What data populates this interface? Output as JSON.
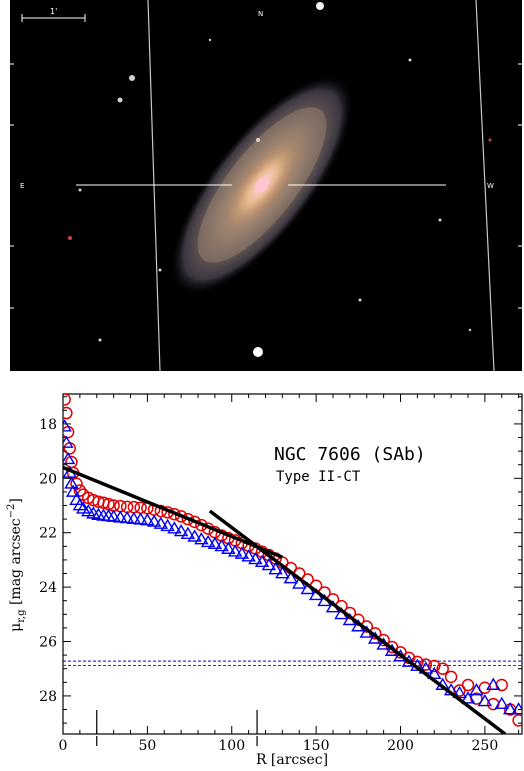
{
  "image_panel": {
    "scale_bar_label": "1'",
    "compass_n": "N",
    "compass_e": "E",
    "compass_w": "W"
  },
  "chart_data": {
    "type": "scatter",
    "title": "NGC 7606 (SAb)",
    "subtitle": "Type II-CT",
    "xlabel": "R [arcsec]",
    "ylabel": "μ_r,g [mag arcsec^-2]",
    "xlim": [
      0,
      272
    ],
    "ylim": [
      29.4,
      16.9
    ],
    "y_inverted": true,
    "x_ticks": [
      0,
      50,
      100,
      150,
      200,
      250
    ],
    "y_ticks": [
      18,
      20,
      22,
      24,
      26,
      28
    ],
    "top_markers": [
      20,
      115
    ],
    "colors": {
      "r": "#e00000",
      "g": "#0000ee",
      "fit": "#000000"
    },
    "series": [
      {
        "marker": "circle",
        "color": "#e00000",
        "x": [
          1,
          2,
          3,
          4,
          5,
          6,
          8,
          10,
          12,
          15,
          18,
          21,
          24,
          27,
          30,
          34,
          38,
          42,
          46,
          50,
          54,
          58,
          62,
          66,
          70,
          74,
          78,
          82,
          86,
          90,
          94,
          98,
          102,
          106,
          110,
          114,
          118,
          122,
          126,
          130,
          135,
          140,
          145,
          150,
          155,
          160,
          165,
          170,
          175,
          180,
          185,
          190,
          195,
          200,
          205,
          210,
          215,
          220,
          225,
          230,
          235,
          240,
          245,
          250,
          255,
          260,
          265,
          270
        ],
        "y": [
          17.1,
          17.6,
          18.3,
          18.9,
          19.4,
          19.8,
          20.2,
          20.45,
          20.6,
          20.72,
          20.8,
          20.86,
          20.9,
          20.95,
          21.0,
          21.02,
          21.05,
          21.06,
          21.08,
          21.1,
          21.15,
          21.2,
          21.25,
          21.32,
          21.4,
          21.5,
          21.6,
          21.72,
          21.85,
          21.98,
          22.1,
          22.2,
          22.28,
          22.38,
          22.48,
          22.58,
          22.7,
          22.82,
          22.95,
          23.1,
          23.3,
          23.5,
          23.72,
          23.95,
          24.2,
          24.45,
          24.7,
          24.95,
          25.2,
          25.45,
          25.7,
          25.95,
          26.2,
          26.4,
          26.6,
          26.75,
          26.85,
          26.9,
          27.0,
          27.3,
          27.8,
          27.6,
          28.1,
          27.7,
          28.3,
          27.6,
          28.5,
          28.9
        ]
      },
      {
        "marker": "triangle",
        "color": "#0000ee",
        "x": [
          1,
          2,
          3,
          4,
          5,
          6,
          8,
          10,
          12,
          15,
          18,
          21,
          24,
          27,
          30,
          34,
          38,
          42,
          46,
          50,
          54,
          58,
          62,
          66,
          70,
          74,
          78,
          82,
          86,
          90,
          94,
          98,
          102,
          106,
          110,
          114,
          118,
          122,
          126,
          130,
          135,
          140,
          145,
          150,
          155,
          160,
          165,
          170,
          175,
          180,
          185,
          190,
          195,
          200,
          205,
          210,
          215,
          220,
          225,
          230,
          235,
          240,
          245,
          250,
          255,
          260,
          265,
          270
        ],
        "y": [
          18.1,
          18.7,
          19.3,
          19.8,
          20.2,
          20.5,
          20.8,
          21.0,
          21.12,
          21.22,
          21.3,
          21.35,
          21.38,
          21.4,
          21.42,
          21.45,
          21.47,
          21.5,
          21.52,
          21.55,
          21.6,
          21.68,
          21.76,
          21.85,
          21.95,
          22.05,
          22.15,
          22.25,
          22.35,
          22.42,
          22.5,
          22.6,
          22.7,
          22.78,
          22.88,
          22.98,
          23.08,
          23.2,
          23.35,
          23.5,
          23.68,
          23.88,
          24.08,
          24.3,
          24.52,
          24.75,
          25.0,
          25.22,
          25.45,
          25.68,
          25.9,
          26.12,
          26.35,
          26.55,
          26.75,
          26.9,
          27.0,
          27.2,
          27.6,
          27.8,
          27.9,
          28.1,
          27.8,
          28.2,
          27.6,
          28.3,
          28.5,
          28.5
        ]
      }
    ],
    "fit_lines": [
      {
        "x": [
          0,
          130
        ],
        "y": [
          19.6,
          22.9
        ]
      },
      {
        "x": [
          87,
          262
        ],
        "y": [
          21.2,
          29.4
        ]
      }
    ],
    "sky_levels": [
      {
        "y": 26.72,
        "color": "#0000ee",
        "dash": true
      },
      {
        "y": 26.88,
        "color": "#e00000",
        "dash": true
      }
    ]
  }
}
